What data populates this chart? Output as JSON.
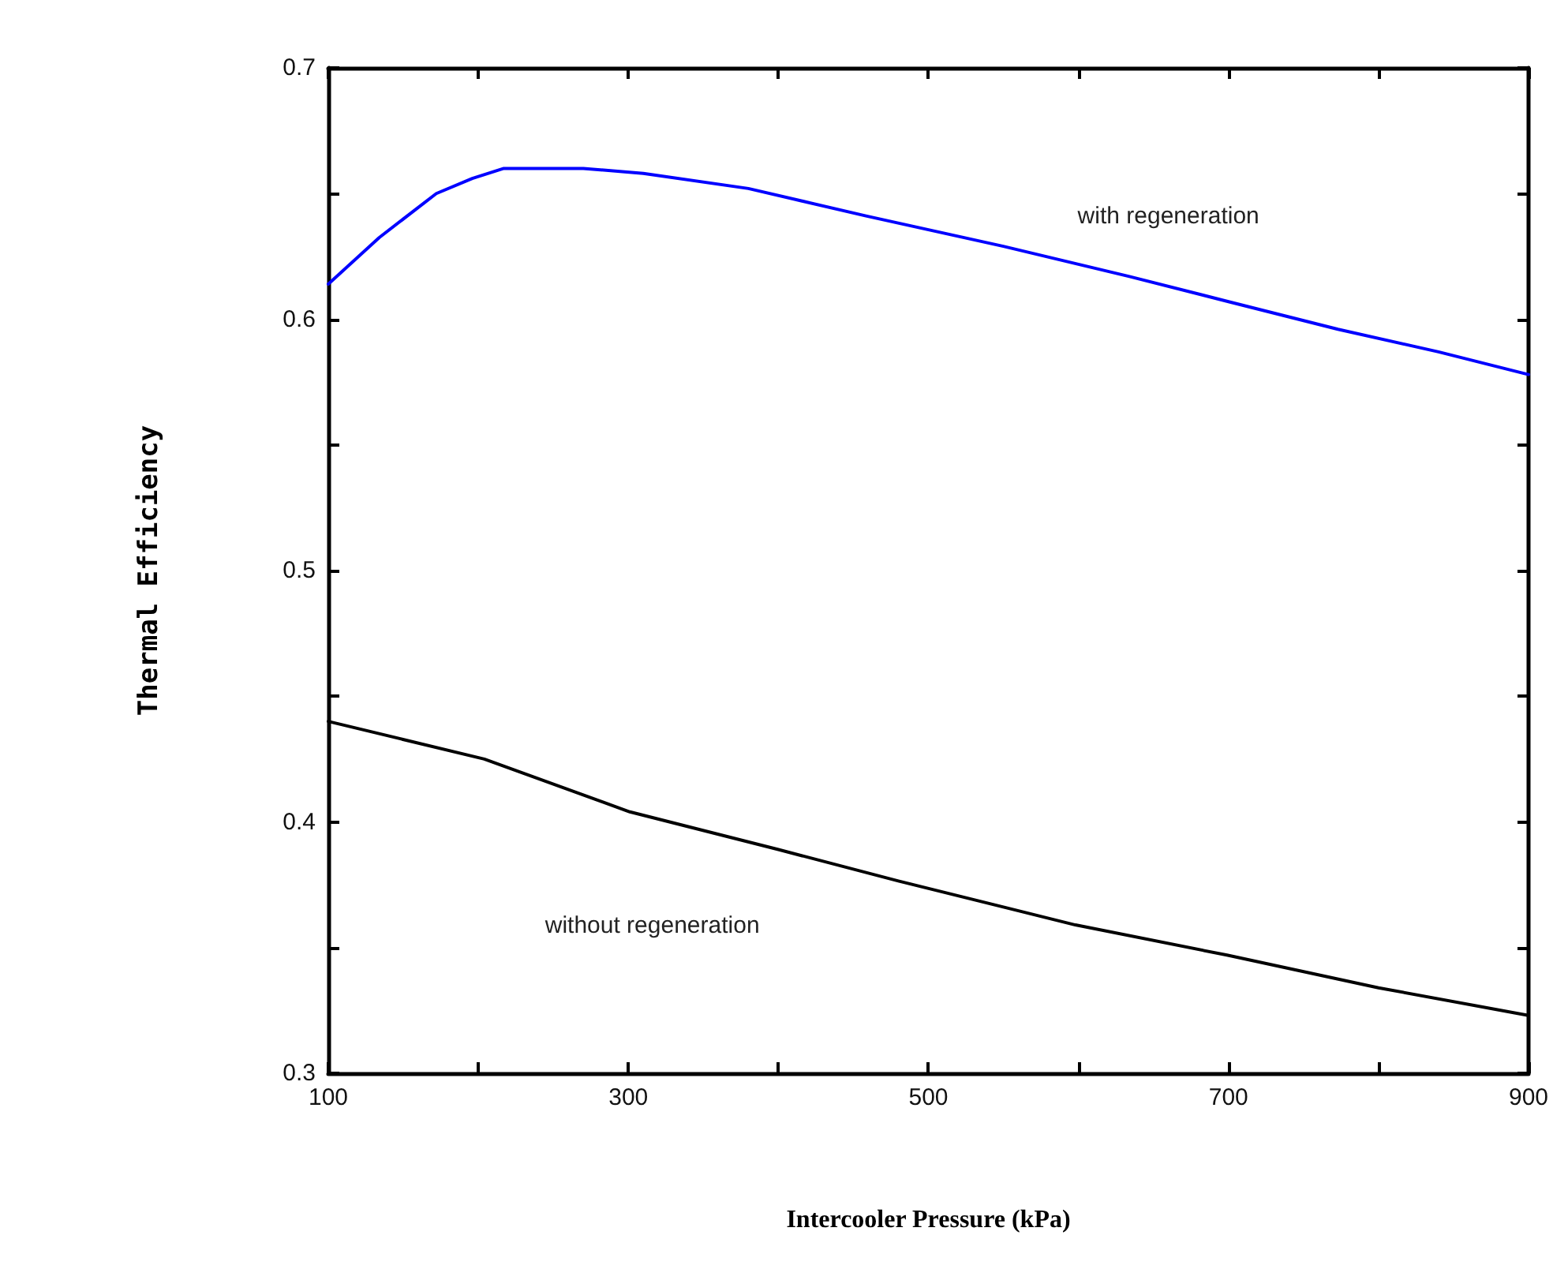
{
  "chart_data": {
    "type": "line",
    "xlabel": "Intercooler Pressure (kPa)",
    "ylabel": "Thermal Efficiency",
    "x": [
      100,
      134,
      172,
      196,
      217,
      270,
      310,
      380,
      459,
      550,
      634,
      700,
      773,
      840,
      900
    ],
    "series": [
      {
        "name": "with regeneration",
        "color": "#0000ff",
        "values": [
          0.614,
          0.6325,
          0.65,
          0.656,
          0.66,
          0.66,
          0.658,
          0.652,
          0.641,
          0.629,
          0.617,
          0.607,
          0.596,
          0.587,
          0.578
        ]
      },
      {
        "name": "without regeneration",
        "color": "#000000",
        "x": [
          100,
          204,
          301,
          400,
          480,
          598,
          699,
          800,
          900
        ],
        "values": [
          0.44,
          0.425,
          0.404,
          0.389,
          0.3765,
          0.359,
          0.347,
          0.334,
          0.323
        ]
      }
    ],
    "xlim": [
      100,
      900
    ],
    "xticks": [
      100,
      {
        "value": 200,
        "label": null
      },
      300,
      {
        "value": 400,
        "label": null
      },
      500,
      {
        "value": 600,
        "label": null
      },
      700,
      {
        "value": 800,
        "label": null
      },
      900
    ],
    "ylim": [
      0.3,
      0.7
    ],
    "yticks": [
      0.3,
      {
        "value": 0.35,
        "label": null
      },
      0.4,
      {
        "value": 0.45,
        "label": null
      },
      0.5,
      {
        "value": 0.55,
        "label": null
      },
      0.6,
      {
        "value": 0.65,
        "label": null
      },
      0.7
    ],
    "grid": false,
    "legend": false,
    "marker": "none",
    "line_style": "solid"
  }
}
